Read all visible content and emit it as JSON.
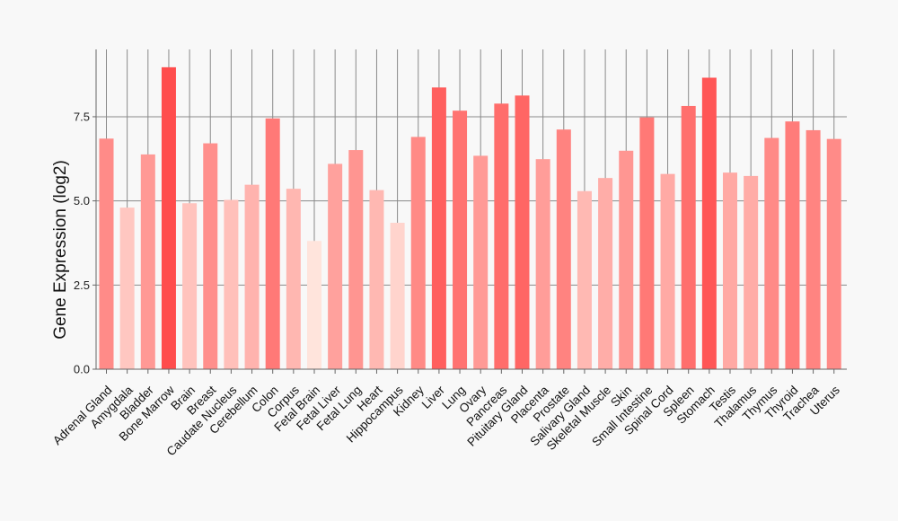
{
  "chart_data": {
    "type": "bar",
    "title": "",
    "xlabel": "",
    "ylabel": "Gene Expression (log2)",
    "ylim": [
      0,
      9.5
    ],
    "yticks": [
      0.0,
      2.5,
      5.0,
      7.5
    ],
    "ytick_labels": [
      "0.0",
      "2.5",
      "5.0",
      "7.5"
    ],
    "grid": true,
    "categories": [
      "Adrenal Gland",
      "Amygdala",
      "Bladder",
      "Bone Marrow",
      "Brain",
      "Breast",
      "Caudate Nucleus",
      "Cerebellum",
      "Colon",
      "Corpus",
      "Fetal Brain",
      "Fetal Liver",
      "Fetal Lung",
      "Heart",
      "Hippocampus",
      "Kidney",
      "Liver",
      "Lung",
      "Ovary",
      "Pancreas",
      "Pituitary Gland",
      "Placenta",
      "Prostate",
      "Salivary Gland",
      "Skeletal Muscle",
      "Skin",
      "Small Intestine",
      "Spinal Cord",
      "Spleen",
      "Stomach",
      "Testis",
      "Thalamus",
      "Thymus",
      "Thyroid",
      "Trachea",
      "Uterus"
    ],
    "values": [
      6.85,
      4.8,
      6.38,
      8.97,
      4.93,
      6.71,
      5.03,
      5.48,
      7.45,
      5.36,
      3.81,
      6.1,
      6.51,
      5.32,
      4.35,
      6.9,
      8.37,
      7.68,
      6.34,
      7.89,
      8.13,
      6.24,
      7.12,
      5.29,
      5.68,
      6.49,
      7.48,
      5.8,
      7.82,
      8.66,
      5.84,
      5.74,
      6.87,
      7.36,
      7.1,
      6.84
    ],
    "color_low": "#ffe4dc",
    "color_high": "#ff4d4d"
  }
}
